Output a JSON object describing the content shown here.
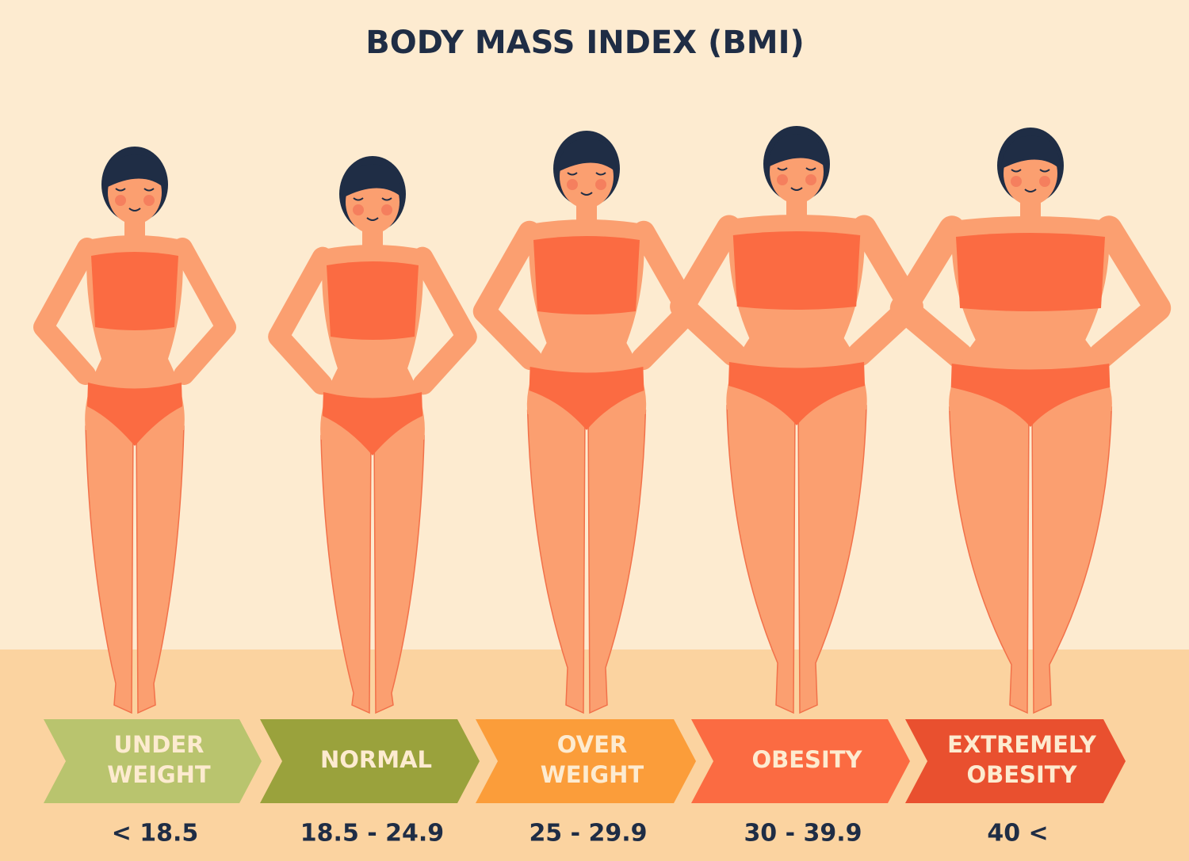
{
  "title": "BODY MASS INDEX (BMI)",
  "categories": [
    {
      "label": [
        "UNDER",
        "WEIGHT"
      ],
      "range": "< 18.5",
      "color": "#b9c46e"
    },
    {
      "label": [
        "NORMAL"
      ],
      "range": "18.5 - 24.9",
      "color": "#9aa23c"
    },
    {
      "label": [
        "OVER",
        "WEIGHT"
      ],
      "range": "25 - 29.9",
      "color": "#fb9d3a"
    },
    {
      "label": [
        "OBESITY"
      ],
      "range": "30 - 39.9",
      "color": "#fb6b42"
    },
    {
      "label": [
        "EXTREMELY",
        "OBESITY"
      ],
      "range": "40 <",
      "color": "#e9502f"
    }
  ]
}
